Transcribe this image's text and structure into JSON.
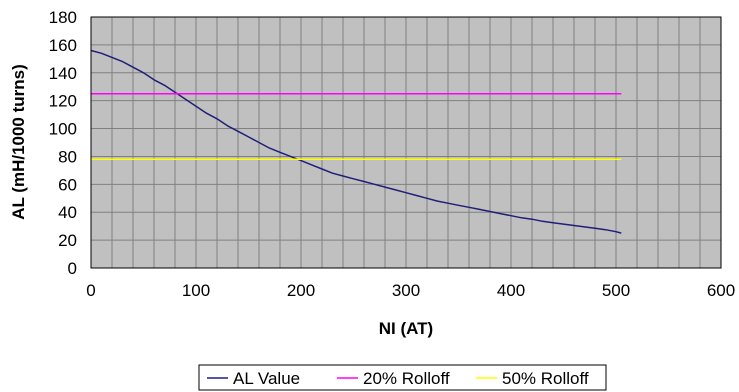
{
  "chart_data": {
    "type": "line",
    "xlabel": "NI (AT)",
    "ylabel": "AL (mH/1000 turns)",
    "xlim": [
      0,
      600
    ],
    "ylim": [
      0,
      180
    ],
    "x_ticks": [
      0,
      100,
      200,
      300,
      400,
      500,
      600
    ],
    "y_ticks": [
      0,
      20,
      40,
      60,
      80,
      100,
      120,
      140,
      160,
      180
    ],
    "x_minor_step": 20,
    "grid": true,
    "plot_background": "#c0c0c0",
    "grid_color": "#808080",
    "legend_position": "bottom",
    "series": [
      {
        "name": "AL Value",
        "color": "#1f1f7a",
        "x": [
          0,
          10,
          20,
          30,
          40,
          50,
          60,
          70,
          80,
          90,
          100,
          110,
          120,
          130,
          140,
          150,
          160,
          170,
          180,
          190,
          200,
          210,
          220,
          230,
          240,
          250,
          260,
          270,
          280,
          290,
          300,
          310,
          320,
          330,
          340,
          350,
          360,
          370,
          380,
          390,
          400,
          410,
          420,
          430,
          440,
          450,
          460,
          470,
          480,
          490,
          500,
          505
        ],
        "y": [
          156,
          154,
          151,
          148,
          144,
          140,
          135,
          131,
          126,
          121,
          116,
          111,
          107,
          102,
          98,
          94,
          90,
          86,
          83,
          80,
          77,
          74,
          71,
          68,
          66,
          64,
          62,
          60,
          58,
          56,
          54,
          52,
          50,
          48,
          46.5,
          45,
          43.5,
          42,
          40.5,
          39,
          37.5,
          36,
          35,
          33.5,
          32.5,
          31.5,
          30.5,
          29.5,
          28.5,
          27.5,
          26,
          25
        ]
      },
      {
        "name": "20% Rolloff",
        "color": "#ff00ff",
        "x": [
          0,
          505
        ],
        "y": [
          125,
          125
        ]
      },
      {
        "name": "50% Rolloff",
        "color": "#ffff00",
        "x": [
          0,
          505
        ],
        "y": [
          78,
          78
        ]
      }
    ]
  }
}
